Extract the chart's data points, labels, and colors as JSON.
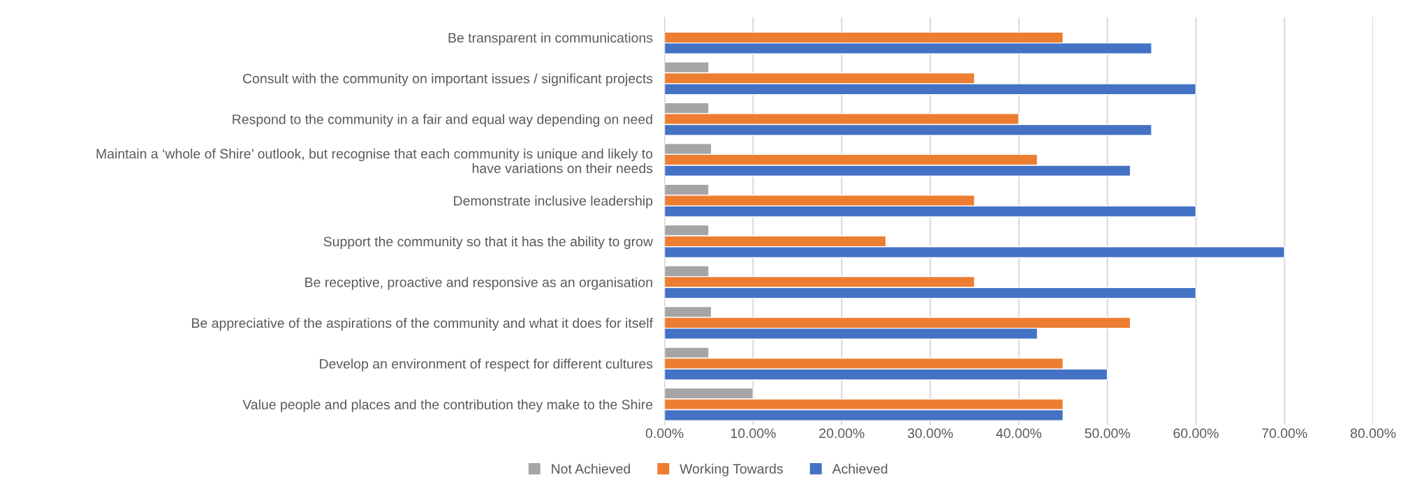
{
  "chart_data": {
    "type": "bar",
    "orientation": "horizontal",
    "categories": [
      "Be transparent in communications",
      "Consult with the community on important issues / significant projects",
      "Respond to the community in a fair and equal way depending on need",
      "Maintain a ‘whole of Shire’ outlook, but recognise that each community is unique and likely to have variations on their needs",
      "Demonstrate inclusive leadership",
      "Support the community so that it has the ability to grow",
      "Be receptive, proactive and responsive as an organisation",
      "Be appreciative of the aspirations of the community and what it does for itself",
      "Develop an environment of respect for different cultures",
      "Value people and places and the contribution they make to the Shire"
    ],
    "series": [
      {
        "name": "Not Achieved",
        "color": "#a5a5a5",
        "values": [
          null,
          5,
          5,
          5.3,
          5,
          5,
          5,
          5.3,
          5,
          10
        ]
      },
      {
        "name": "Working Towards",
        "color": "#ed7d31",
        "values": [
          45,
          35,
          40,
          42.1,
          35,
          25,
          35,
          52.6,
          45,
          45
        ]
      },
      {
        "name": "Achieved",
        "color": "#4472c4",
        "values": [
          55,
          60,
          55,
          52.6,
          60,
          70,
          60,
          42.1,
          50,
          45
        ]
      }
    ],
    "xlim": [
      0,
      80
    ],
    "xticks": [
      {
        "value": 0,
        "label": "0.00%"
      },
      {
        "value": 10,
        "label": "10.00%"
      },
      {
        "value": 20,
        "label": "20.00%"
      },
      {
        "value": 30,
        "label": "30.00%"
      },
      {
        "value": 40,
        "label": "40.00%"
      },
      {
        "value": 50,
        "label": "50.00%"
      },
      {
        "value": 60,
        "label": "60.00%"
      },
      {
        "value": 70,
        "label": "70.00%"
      },
      {
        "value": 80,
        "label": "80.00%"
      }
    ],
    "grid": "x",
    "legend": "bottom"
  }
}
